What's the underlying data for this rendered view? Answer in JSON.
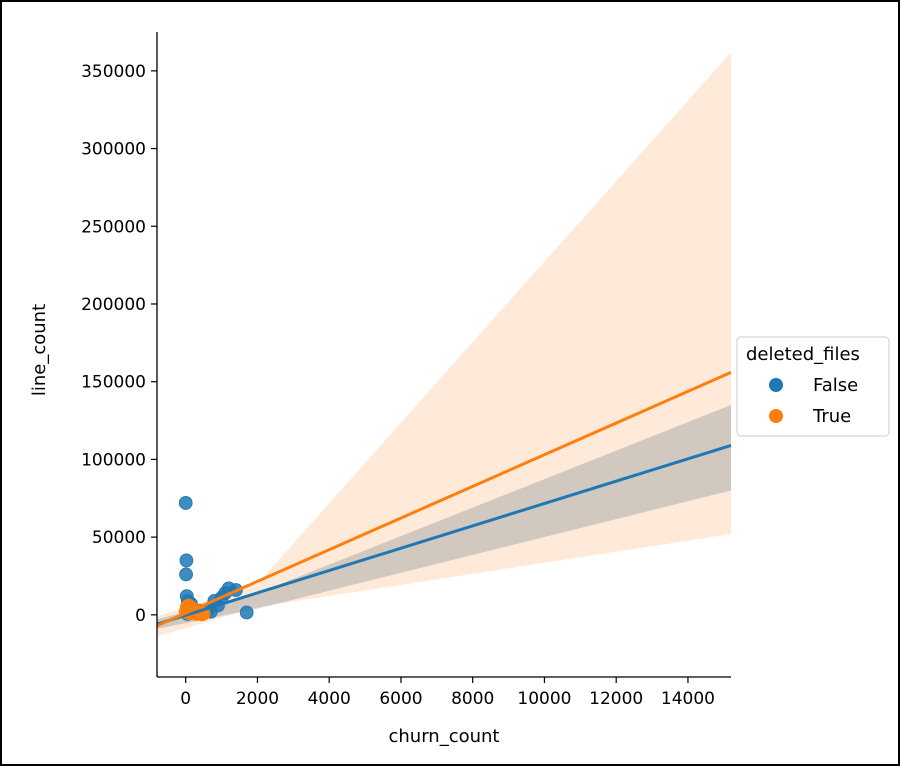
{
  "chart_data": {
    "type": "scatter",
    "xlabel": "churn_count",
    "ylabel": "line_count",
    "xlim": [
      -800,
      15200
    ],
    "ylim": [
      -40000,
      375000
    ],
    "x_ticks": [
      0,
      2000,
      4000,
      6000,
      8000,
      10000,
      12000,
      14000
    ],
    "y_ticks": [
      0,
      50000,
      100000,
      150000,
      200000,
      250000,
      300000,
      350000
    ],
    "x_tick_labels": [
      "0",
      "2000",
      "4000",
      "6000",
      "8000",
      "10000",
      "12000",
      "14000"
    ],
    "y_tick_labels": [
      "0",
      "50000",
      "100000",
      "150000",
      "200000",
      "250000",
      "300000",
      "350000"
    ],
    "legend": {
      "title": "deleted_files",
      "placement": "center-right",
      "entries": [
        "False",
        "True"
      ]
    },
    "series": [
      {
        "name": "False",
        "color": "#1f77b4",
        "points": [
          [
            0,
            72000
          ],
          [
            20,
            35000
          ],
          [
            10,
            26000
          ],
          [
            30,
            12000
          ],
          [
            60,
            9000
          ],
          [
            90,
            6000
          ],
          [
            120,
            4000
          ],
          [
            150,
            7000
          ],
          [
            200,
            3000
          ],
          [
            250,
            2000
          ],
          [
            300,
            1500
          ],
          [
            400,
            2500
          ],
          [
            500,
            1000
          ],
          [
            600,
            3000
          ],
          [
            700,
            2000
          ],
          [
            800,
            9000
          ],
          [
            900,
            6000
          ],
          [
            1000,
            11000
          ],
          [
            1100,
            14000
          ],
          [
            1200,
            17000
          ],
          [
            1400,
            16000
          ],
          [
            1700,
            1500
          ],
          [
            50,
            500
          ],
          [
            100,
            1000
          ]
        ],
        "regression": {
          "x_start": -800,
          "y_start": -6000,
          "x_end": 15200,
          "y_end": 109000
        },
        "ci_band": {
          "x": [
            -800,
            2000,
            15200
          ],
          "lower": [
            -9000,
            4000,
            80000
          ],
          "upper": [
            -3000,
            14000,
            135000
          ]
        }
      },
      {
        "name": "True",
        "color": "#ff7f0e",
        "points": [
          [
            0,
            2000
          ],
          [
            30,
            5000
          ],
          [
            60,
            3000
          ],
          [
            80,
            6000
          ],
          [
            100,
            1000
          ],
          [
            130,
            4000
          ],
          [
            160,
            2500
          ],
          [
            200,
            1500
          ],
          [
            250,
            3500
          ],
          [
            300,
            500
          ],
          [
            350,
            2000
          ],
          [
            400,
            1000
          ],
          [
            450,
            300
          ],
          [
            500,
            800
          ]
        ],
        "regression": {
          "x_start": -800,
          "y_start": -7000,
          "x_end": 15200,
          "y_end": 156000
        },
        "ci_band": {
          "x": [
            -800,
            2000,
            15200
          ],
          "lower": [
            -14000,
            5000,
            52000
          ],
          "upper": [
            -1000,
            20000,
            362000
          ]
        }
      }
    ]
  }
}
